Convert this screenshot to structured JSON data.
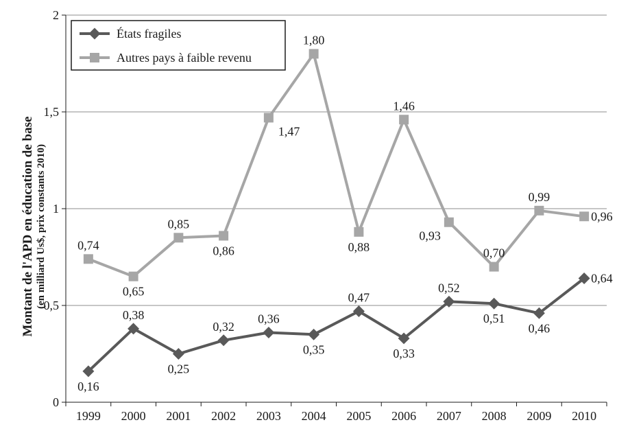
{
  "chart_data": {
    "type": "line",
    "title": "",
    "ylabel": "Montant de l'APD en éducation de base",
    "ylabel_sub": "(en milliard Us$, prix constants 2010)",
    "xlabel": "",
    "categories": [
      "1999",
      "2000",
      "2001",
      "2002",
      "2003",
      "2004",
      "2005",
      "2006",
      "2007",
      "2008",
      "2009",
      "2010"
    ],
    "ylim": [
      0,
      2
    ],
    "yticks": [
      0,
      0.5,
      1,
      1.5,
      2
    ],
    "ytick_labels": [
      "0",
      "0,5",
      "1",
      "1,5",
      "2"
    ],
    "grid": "horizontal",
    "legend_position": "top-left",
    "series": [
      {
        "name": "États fragiles",
        "color": "#595959",
        "marker": "diamond",
        "values": [
          0.16,
          0.38,
          0.25,
          0.32,
          0.36,
          0.35,
          0.47,
          0.33,
          0.52,
          0.51,
          0.46,
          0.64
        ],
        "labels": [
          "0,16",
          "0,38",
          "0,25",
          "0,32",
          "0,36",
          "0,35",
          "0,47",
          "0,33",
          "0,52",
          "0,51",
          "0,46",
          "0,64"
        ]
      },
      {
        "name": "Autres pays à faible revenu",
        "color": "#a6a6a6",
        "marker": "square",
        "values": [
          0.74,
          0.65,
          0.85,
          0.86,
          1.47,
          1.8,
          0.88,
          1.46,
          0.93,
          0.7,
          0.99,
          0.96
        ],
        "labels": [
          "0,74",
          "0,65",
          "0,85",
          "0,86",
          "1,47",
          "1,80",
          "0,88",
          "1,46",
          "0,93",
          "0,70",
          "0,99",
          "0,96"
        ]
      }
    ]
  }
}
